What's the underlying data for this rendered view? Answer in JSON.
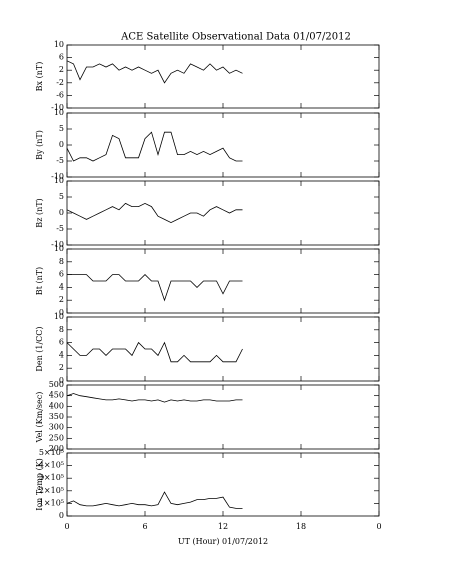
{
  "chart_data": [
    {
      "type": "line",
      "title": "ACE Satellite Observational Data   01/07/2012",
      "ylabel": "Bx (nT)",
      "color": "#000000",
      "x": [
        0,
        0.5,
        1,
        1.5,
        2,
        2.5,
        3,
        3.5,
        4,
        4.5,
        5,
        5.5,
        6,
        6.5,
        7,
        7.5,
        8,
        8.5,
        9,
        9.5,
        10,
        10.5,
        11,
        11.5,
        12,
        12.5,
        13,
        13.5
      ],
      "values": [
        5,
        4,
        -1,
        3,
        3,
        4,
        3,
        4,
        2,
        3,
        2,
        3,
        2,
        1,
        2,
        -2,
        1,
        2,
        1,
        4,
        3,
        2,
        4,
        2,
        3,
        1,
        2,
        1
      ],
      "xlim": [
        0,
        24
      ],
      "xticks": [
        0,
        6,
        12,
        18,
        {
          "value": 24,
          "label": "0"
        }
      ],
      "ylim": [
        -10,
        10
      ],
      "yticks": [
        -10,
        -6,
        -2,
        2,
        6,
        10
      ]
    },
    {
      "type": "line",
      "ylabel": "By (nT)",
      "color": "#000000",
      "x": [
        0,
        0.5,
        1,
        1.5,
        2,
        2.5,
        3,
        3.5,
        4,
        4.5,
        5,
        5.5,
        6,
        6.5,
        7,
        7.5,
        8,
        8.5,
        9,
        9.5,
        10,
        10.5,
        11,
        11.5,
        12,
        12.5,
        13,
        13.5
      ],
      "values": [
        -1,
        -5,
        -4,
        -4,
        -5,
        -4,
        -3,
        3,
        2,
        -4,
        -4,
        -4,
        2,
        4,
        -3,
        4,
        4,
        -3,
        -3,
        -2,
        -3,
        -2,
        -3,
        -2,
        -1,
        -4,
        -5,
        -5
      ],
      "xlim": [
        0,
        24
      ],
      "xticks": [
        0,
        6,
        12,
        18,
        {
          "value": 24,
          "label": "0"
        }
      ],
      "ylim": [
        -10,
        10
      ],
      "yticks": [
        -10,
        -5,
        0,
        5,
        10
      ]
    },
    {
      "type": "line",
      "ylabel": "Bz (nT)",
      "color": "#000000",
      "x": [
        0,
        0.5,
        1,
        1.5,
        2,
        2.5,
        3,
        3.5,
        4,
        4.5,
        5,
        5.5,
        6,
        6.5,
        7,
        7.5,
        8,
        8.5,
        9,
        9.5,
        10,
        10.5,
        11,
        11.5,
        12,
        12.5,
        13,
        13.5
      ],
      "values": [
        1,
        0,
        -1,
        -2,
        -1,
        0,
        1,
        2,
        1,
        3,
        2,
        2,
        3,
        2,
        -1,
        -2,
        -3,
        -2,
        -1,
        0,
        0,
        -1,
        1,
        2,
        1,
        0,
        1,
        1
      ],
      "xlim": [
        0,
        24
      ],
      "xticks": [
        0,
        6,
        12,
        18,
        {
          "value": 24,
          "label": "0"
        }
      ],
      "ylim": [
        -10,
        10
      ],
      "yticks": [
        -10,
        -5,
        0,
        5,
        10
      ]
    },
    {
      "type": "line",
      "ylabel": "Bt (nT)",
      "color": "#000000",
      "x": [
        0,
        0.5,
        1,
        1.5,
        2,
        2.5,
        3,
        3.5,
        4,
        4.5,
        5,
        5.5,
        6,
        6.5,
        7,
        7.5,
        8,
        8.5,
        9,
        9.5,
        10,
        10.5,
        11,
        11.5,
        12,
        12.5,
        13,
        13.5
      ],
      "values": [
        6,
        6,
        6,
        6,
        5,
        5,
        5,
        6,
        6,
        5,
        5,
        5,
        6,
        5,
        5,
        2,
        5,
        5,
        5,
        5,
        4,
        5,
        5,
        5,
        3,
        5,
        5,
        5
      ],
      "xlim": [
        0,
        24
      ],
      "xticks": [
        0,
        6,
        12,
        18,
        {
          "value": 24,
          "label": "0"
        }
      ],
      "ylim": [
        0,
        10
      ],
      "yticks": [
        0,
        2,
        4,
        6,
        8,
        10
      ]
    },
    {
      "type": "line",
      "ylabel": "Den (1/CC)",
      "color": "#000000",
      "x": [
        0,
        0.5,
        1,
        1.5,
        2,
        2.5,
        3,
        3.5,
        4,
        4.5,
        5,
        5.5,
        6,
        6.5,
        7,
        7.5,
        8,
        8.5,
        9,
        9.5,
        10,
        10.5,
        11,
        11.5,
        12,
        12.5,
        13,
        13.5
      ],
      "values": [
        6,
        5,
        4,
        4,
        5,
        5,
        4,
        5,
        5,
        5,
        4,
        6,
        5,
        5,
        4,
        6,
        3,
        3,
        4,
        3,
        3,
        3,
        3,
        4,
        3,
        3,
        3,
        5
      ],
      "xlim": [
        0,
        24
      ],
      "xticks": [
        0,
        6,
        12,
        18,
        {
          "value": 24,
          "label": "0"
        }
      ],
      "ylim": [
        0,
        10
      ],
      "yticks": [
        0,
        2,
        4,
        6,
        8,
        10
      ]
    },
    {
      "type": "line",
      "ylabel": "Vel (Km/sec)",
      "color": "#000000",
      "x": [
        0,
        0.5,
        1,
        1.5,
        2,
        2.5,
        3,
        3.5,
        4,
        4.5,
        5,
        5.5,
        6,
        6.5,
        7,
        7.5,
        8,
        8.5,
        9,
        9.5,
        10,
        10.5,
        11,
        11.5,
        12,
        12.5,
        13,
        13.5
      ],
      "values": [
        450,
        460,
        450,
        445,
        440,
        435,
        430,
        430,
        435,
        430,
        425,
        430,
        430,
        425,
        430,
        420,
        430,
        425,
        430,
        425,
        425,
        430,
        430,
        425,
        425,
        425,
        430,
        430
      ],
      "xlim": [
        0,
        24
      ],
      "xticks": [
        0,
        6,
        12,
        18,
        {
          "value": 24,
          "label": "0"
        }
      ],
      "ylim": [
        200,
        500
      ],
      "yticks": [
        200,
        250,
        300,
        350,
        400,
        450,
        500
      ]
    },
    {
      "type": "line",
      "ylabel": "Ion Temp (K)",
      "xlabel": "UT (Hour)  01/07/2012",
      "color": "#000000",
      "x": [
        0,
        0.5,
        1,
        1.5,
        2,
        2.5,
        3,
        3.5,
        4,
        4.5,
        5,
        5.5,
        6,
        6.5,
        7,
        7.5,
        8,
        8.5,
        9,
        9.5,
        10,
        10.5,
        11,
        11.5,
        12,
        12.5,
        13,
        13.5
      ],
      "values": [
        100000,
        120000,
        90000,
        80000,
        80000,
        90000,
        100000,
        90000,
        80000,
        90000,
        100000,
        90000,
        90000,
        80000,
        90000,
        190000,
        100000,
        90000,
        100000,
        110000,
        130000,
        130000,
        140000,
        140000,
        150000,
        70000,
        60000,
        60000
      ],
      "xlim": [
        0,
        24
      ],
      "xticks": [
        0,
        6,
        12,
        18,
        {
          "value": 24,
          "label": "0"
        }
      ],
      "ylim": [
        0,
        500000
      ],
      "yticks": [
        0,
        {
          "value": 100000,
          "label": "1×10⁵"
        },
        {
          "value": 200000,
          "label": "2×10⁵"
        },
        {
          "value": 300000,
          "label": "3×10⁵"
        },
        {
          "value": 400000,
          "label": "4×10⁵"
        },
        {
          "value": 500000,
          "label": "5×10⁵"
        }
      ]
    }
  ]
}
